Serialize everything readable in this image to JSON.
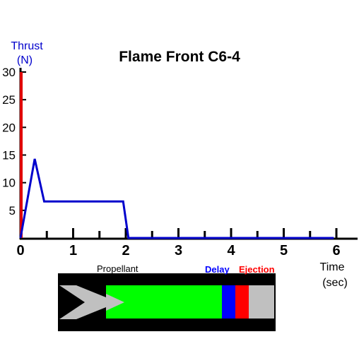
{
  "chart_data": {
    "type": "line",
    "title": "Flame Front C6-4",
    "ylabel": "Thrust (N)",
    "ylabel_lines": [
      "Thrust",
      "(N)"
    ],
    "xlabel": "Time (sec)",
    "xlabel_lines": [
      "Time",
      "(sec)"
    ],
    "xlim": [
      0,
      6
    ],
    "ylim": [
      0,
      30
    ],
    "x_ticks": [
      "0",
      "1",
      "2",
      "3",
      "4",
      "5",
      "6"
    ],
    "y_ticks": [
      "5",
      "10",
      "15",
      "20",
      "25",
      "30"
    ],
    "grid": false,
    "series": [
      {
        "color": "#0000cc",
        "x": [
          0,
          0.27,
          0.45,
          1.95,
          2.05,
          5.95
        ],
        "y": [
          0,
          14.3,
          6.6,
          6.6,
          0,
          0
        ]
      }
    ],
    "flame_front_marker": {
      "x": 0,
      "color": "#e00000"
    }
  },
  "motor_diagram": {
    "labels": {
      "propellant": "Propellant",
      "delay": "Delay",
      "ejection": "Ejection"
    },
    "colors": {
      "casing": "#000000",
      "nozzle": "#c0c0c0",
      "propellant": "#00ff00",
      "delay": "#0000ff",
      "ejection": "#ff0000",
      "cap": "#c0c0c0"
    }
  }
}
